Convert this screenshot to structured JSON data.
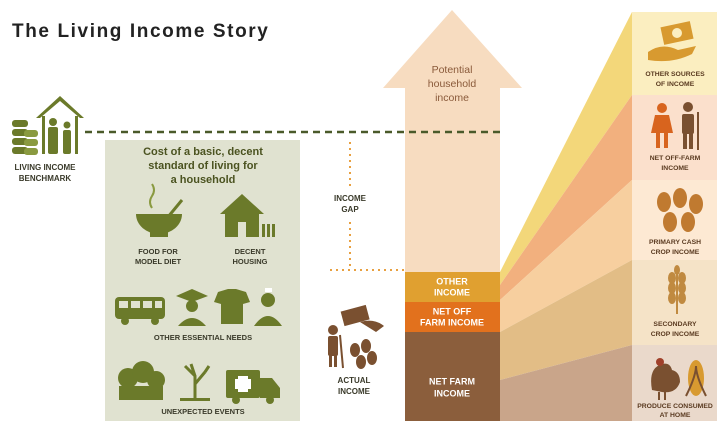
{
  "title": "The Living Income Story",
  "benchmark": {
    "lines": [
      "LIVING INCOME",
      "BENCHMARK"
    ]
  },
  "cost_box": {
    "heading": [
      "Cost of a basic, decent",
      "standard of living for",
      "a household"
    ],
    "items": [
      {
        "lines": [
          "FOOD FOR",
          "MODEL DIET"
        ]
      },
      {
        "lines": [
          "DECENT",
          "HOUSING"
        ]
      },
      {
        "lines": [
          "OTHER ESSENTIAL NEEDS"
        ]
      },
      {
        "lines": [
          "UNEXPECTED EVENTS"
        ]
      }
    ]
  },
  "income_gap": {
    "lines": [
      "INCOME",
      "GAP"
    ]
  },
  "actual_income": {
    "lines": [
      "ACTUAL",
      "INCOME"
    ]
  },
  "potential": {
    "lines": [
      "Potential",
      "household",
      "income"
    ]
  },
  "bar_segments": [
    {
      "lines": [
        "OTHER",
        "INCOME"
      ]
    },
    {
      "lines": [
        "NET OFF",
        "FARM INCOME"
      ]
    },
    {
      "lines": [
        "NET FARM",
        "INCOME"
      ]
    }
  ],
  "sources": [
    {
      "lines": [
        "OTHER SOURCES",
        "OF INCOME"
      ]
    },
    {
      "lines": [
        "NET OFF-FARM",
        "INCOME"
      ]
    },
    {
      "lines": [
        "PRIMARY CASH",
        "CROP INCOME"
      ]
    },
    {
      "lines": [
        "SECONDARY",
        "CROP INCOME"
      ]
    },
    {
      "lines": [
        "PRODUCE CONSUMED",
        "AT HOME"
      ]
    }
  ]
}
